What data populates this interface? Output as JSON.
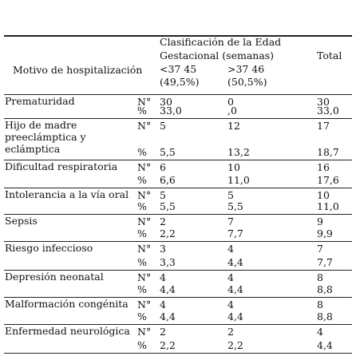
{
  "table": {
    "header": {
      "motive": "Motivo de hospitalización",
      "group_line1": "Clasificación de la Edad",
      "group_line2": "Gestacional (semanas)",
      "col1_line1": "<37 45",
      "col1_line2": "(49,5%)",
      "col2_line1": ">37 46",
      "col2_line2": "(50,5%)",
      "total": "Total"
    },
    "units": {
      "n": "N°",
      "pct": "%"
    },
    "rows": [
      {
        "label": "Prematuridad",
        "n": [
          "30",
          "0",
          "30"
        ],
        "pct": [
          "33,0",
          ",0",
          "33,0"
        ]
      },
      {
        "label": "Hijo de madre preeclámptica y eclámptica",
        "n": [
          "5",
          "12",
          "17"
        ],
        "pct": [
          "5,5",
          "13,2",
          "18,7"
        ]
      },
      {
        "label": "Dificultad respiratoria",
        "n": [
          "6",
          "10",
          "16"
        ],
        "pct": [
          "6,6",
          "11,0",
          "17,6"
        ]
      },
      {
        "label": "Intolerancia a la vía oral",
        "n": [
          "5",
          "5",
          "10"
        ],
        "pct": [
          "5,5",
          "5,5",
          "11,0"
        ]
      },
      {
        "label": "Sepsis",
        "n": [
          "2",
          "7",
          "9"
        ],
        "pct": [
          "2,2",
          "7,7",
          "9,9"
        ]
      },
      {
        "label": "Riesgo infeccioso",
        "n": [
          "3",
          "4",
          "7"
        ],
        "pct": [
          "3,3",
          "4,4",
          "7,7"
        ]
      },
      {
        "label": "Depresión neonatal",
        "n": [
          "4",
          "4",
          "8"
        ],
        "pct": [
          "4,4",
          "4,4",
          "8,8"
        ]
      },
      {
        "label": "Malformación congénita",
        "n": [
          "4",
          "4",
          "8"
        ],
        "pct": [
          "4,4",
          "4,4",
          "8,8"
        ]
      },
      {
        "label": "Enfermedad neurológica",
        "n": [
          "2",
          "2",
          "4"
        ],
        "pct": [
          "2,2",
          "2,2",
          "4,4"
        ]
      }
    ]
  }
}
